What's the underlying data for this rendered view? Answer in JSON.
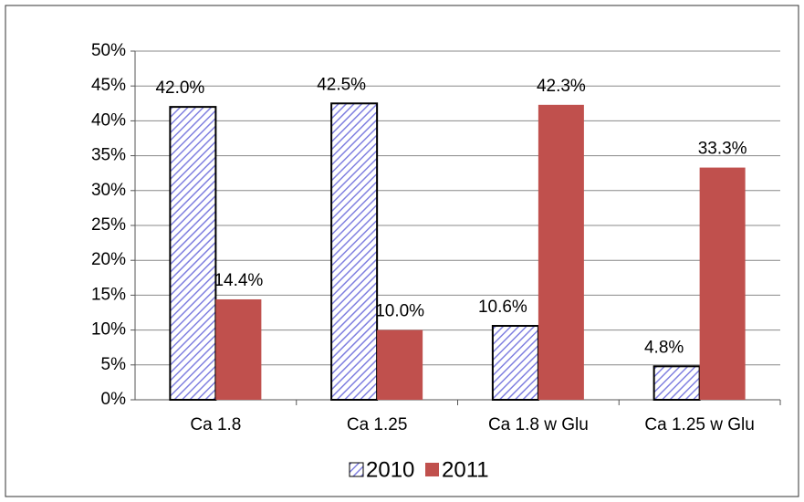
{
  "chart_data": {
    "type": "bar",
    "categories": [
      "Ca 1.8",
      "Ca 1.25",
      "Ca 1.8 w Glu",
      "Ca 1.25 w Glu"
    ],
    "series": [
      {
        "name": "2010",
        "color": "#8080e0",
        "pattern": "hatch",
        "values": [
          42.0,
          42.5,
          10.6,
          4.8
        ],
        "value_labels": [
          "42.0%",
          "42.5%",
          "10.6%",
          "4.8%"
        ]
      },
      {
        "name": "2011",
        "color": "#c0504d",
        "values": [
          14.4,
          10.0,
          42.3,
          33.3
        ],
        "value_labels": [
          "14.4%",
          "10.0%",
          "42.3%",
          "33.3%"
        ]
      }
    ],
    "ylim": [
      0,
      50
    ],
    "yticks": [
      {
        "value": 0,
        "label": "0%"
      },
      {
        "value": 5,
        "label": "5%"
      },
      {
        "value": 10,
        "label": "10%"
      },
      {
        "value": 15,
        "label": "15%"
      },
      {
        "value": 20,
        "label": "20%"
      },
      {
        "value": 25,
        "label": "25%"
      },
      {
        "value": 30,
        "label": "30%"
      },
      {
        "value": 35,
        "label": "35%"
      },
      {
        "value": 40,
        "label": "40%"
      },
      {
        "value": 45,
        "label": "45%"
      },
      {
        "value": 50,
        "label": "50%"
      }
    ],
    "grid": true,
    "legend": "bottom"
  }
}
